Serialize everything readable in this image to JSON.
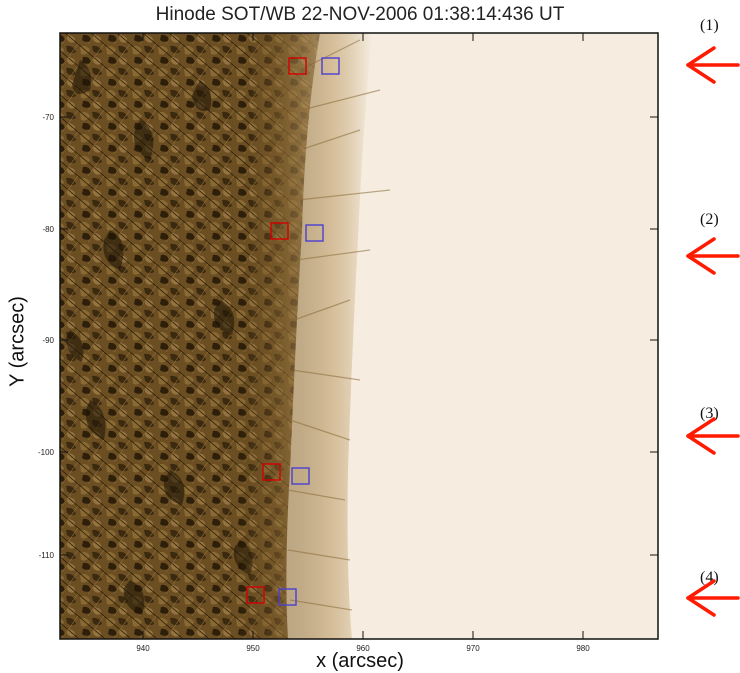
{
  "title": "Hinode SOT/WB 22-NOV-2006 01:38:14:436 UT",
  "xlabel": "x (arcsec)",
  "ylabel": "Y (arcsec)",
  "x_ticks": [
    "940",
    "950",
    "960",
    "970",
    "980"
  ],
  "y_ticks": [
    "-70",
    "-80",
    "-90",
    "-100",
    "-110"
  ],
  "markers": [
    {
      "label": "(1)"
    },
    {
      "label": "(2)"
    },
    {
      "label": "(3)"
    },
    {
      "label": "(4)"
    }
  ],
  "colors": {
    "arrow": "#ff1a00",
    "box_red": "#d40000",
    "box_blue": "#4a3fd0",
    "sky": "#f6ede0",
    "disk_dark": "#4a3515",
    "disk_mid": "#7a5a2a"
  }
}
